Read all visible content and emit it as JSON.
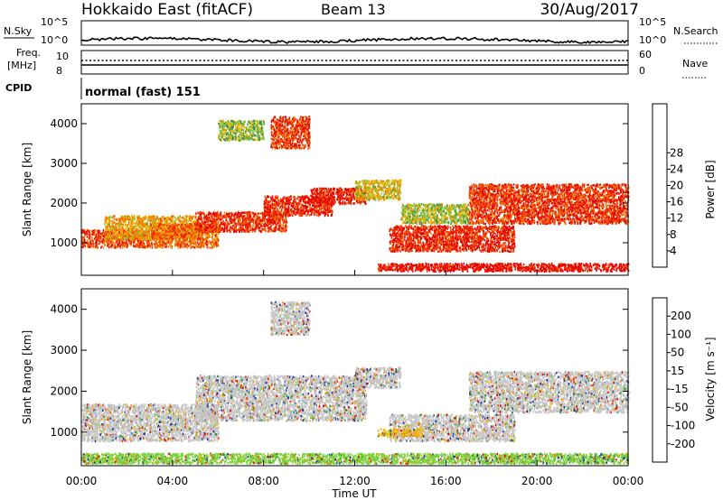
{
  "header": {
    "station": "Hokkaido East (fitACF)",
    "beam": "Beam 13",
    "date": "30/Aug/2017"
  },
  "strip": {
    "nsky_label": "N.Sky",
    "nsky_ticks": [
      "10^5",
      "10^0"
    ],
    "nsearch_label": "N.Search",
    "nsearch_ticks": [
      "10^5",
      "10^0"
    ],
    "freq_label_1": "Freq.",
    "freq_label_2": "[MHz]",
    "freq_ticks": [
      "10",
      "8"
    ],
    "nave_label": "Nave",
    "nave_ticks": [
      "60",
      "0"
    ],
    "cpid_label": "CPID",
    "cpid_text": "normal (fast) 151"
  },
  "axes": {
    "xlabel": "Time UT",
    "xticks": [
      "00:00",
      "04:00",
      "08:00",
      "12:00",
      "16:00",
      "20:00",
      "00:00"
    ],
    "ylabel": "Slant Range [km]",
    "yticks": [
      "1000",
      "2000",
      "3000",
      "4000"
    ]
  },
  "power_scale": {
    "label": "Power [dB]",
    "ticks": [
      "4",
      "8",
      "12",
      "16",
      "20",
      "24",
      "28"
    ],
    "colors": [
      "#0000ff",
      "#1f3fae",
      "#2e7d5b",
      "#4c9a45",
      "#8cc63e",
      "#f0b400",
      "#f58a00",
      "#f25a00",
      "#ec1e00",
      "#e60000"
    ]
  },
  "velocity_scale": {
    "label": "Velocity [m s⁻¹]",
    "ticks": [
      "200",
      "100",
      "50",
      "15",
      "-15",
      "-50",
      "-100",
      "-200"
    ],
    "colors": [
      "#1e2a9a",
      "#2e4fb0",
      "#2f8a3c",
      "#7bd13a",
      "#c6c6c6",
      "#f0b400",
      "#f58a00",
      "#ef3a00",
      "#e60000"
    ]
  },
  "chart_data": [
    {
      "type": "heatmap",
      "title": "Power [dB]",
      "xlabel": "Time UT",
      "ylabel": "Slant Range [km]",
      "xlim": [
        0,
        24
      ],
      "ylim": [
        180,
        4500
      ],
      "zlim": [
        0,
        30
      ],
      "bands": [
        {
          "t": [
            0,
            3
          ],
          "r": [
            900,
            1350
          ],
          "z": 24
        },
        {
          "t": [
            1,
            5
          ],
          "r": [
            1100,
            1700
          ],
          "z": 18
        },
        {
          "t": [
            3,
            6
          ],
          "r": [
            900,
            1500
          ],
          "z": 22
        },
        {
          "t": [
            5,
            9
          ],
          "r": [
            1300,
            1800
          ],
          "z": 25
        },
        {
          "t": [
            8,
            11
          ],
          "r": [
            1700,
            2200
          ],
          "z": 26
        },
        {
          "t": [
            10,
            12.5
          ],
          "r": [
            2000,
            2400
          ],
          "z": 27
        },
        {
          "t": [
            12,
            14
          ],
          "r": [
            2100,
            2600
          ],
          "z": 16
        },
        {
          "t": [
            8.3,
            10
          ],
          "r": [
            3400,
            4200
          ],
          "z": 25
        },
        {
          "t": [
            13.5,
            19
          ],
          "r": [
            800,
            1450
          ],
          "z": 26
        },
        {
          "t": [
            14,
            17
          ],
          "r": [
            1500,
            2000
          ],
          "z": 14
        },
        {
          "t": [
            17,
            24
          ],
          "r": [
            1500,
            2500
          ],
          "z": 25
        },
        {
          "t": [
            13,
            24
          ],
          "r": [
            300,
            500
          ],
          "z": 28
        },
        {
          "t": [
            6,
            8
          ],
          "r": [
            3600,
            4100
          ],
          "z": 13
        }
      ]
    },
    {
      "type": "heatmap",
      "title": "Velocity [m s⁻¹]",
      "xlabel": "Time UT",
      "ylabel": "Slant Range [km]",
      "xlim": [
        0,
        24
      ],
      "ylim": [
        180,
        4500
      ],
      "zlim": [
        -200,
        200
      ],
      "bands": [
        {
          "t": [
            0,
            6
          ],
          "r": [
            800,
            1700
          ],
          "z": 0
        },
        {
          "t": [
            5,
            12.5
          ],
          "r": [
            1300,
            2400
          ],
          "z": 0
        },
        {
          "t": [
            8.3,
            10
          ],
          "r": [
            3400,
            4200
          ],
          "z": 0
        },
        {
          "t": [
            13.5,
            19
          ],
          "r": [
            800,
            1450
          ],
          "z": 0
        },
        {
          "t": [
            17,
            24
          ],
          "r": [
            1500,
            2500
          ],
          "z": 0
        },
        {
          "t": [
            12,
            14
          ],
          "r": [
            2100,
            2600
          ],
          "z": 0
        },
        {
          "t": [
            0,
            24
          ],
          "r": [
            250,
            500
          ],
          "z": -40
        },
        {
          "t": [
            13,
            15
          ],
          "r": [
            900,
            1100
          ],
          "z": 30
        }
      ]
    }
  ]
}
